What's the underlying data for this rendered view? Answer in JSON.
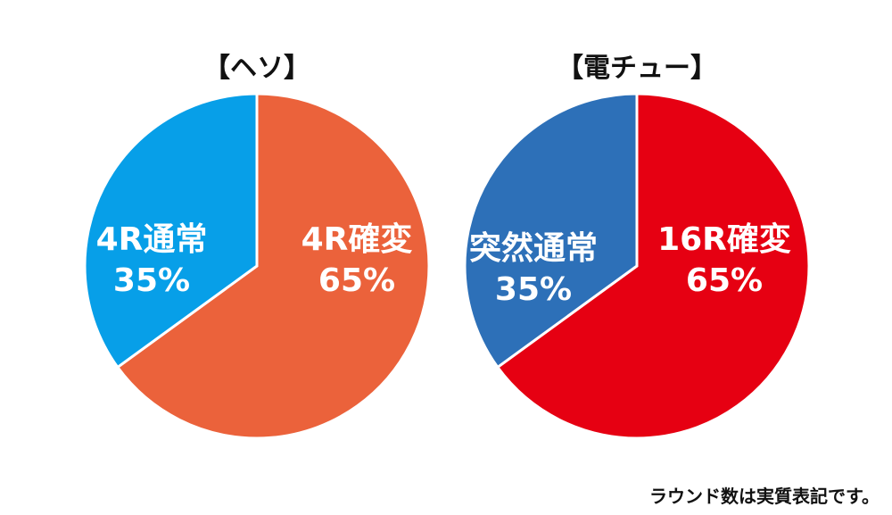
{
  "chart_data": [
    {
      "type": "pie",
      "title": "【ヘソ】",
      "slices": [
        {
          "label": "4R確変",
          "value": 65,
          "value_text": "65%",
          "color": "#eb623b"
        },
        {
          "label": "4R通常",
          "value": 35,
          "value_text": "35%",
          "color": "#079fe8"
        }
      ]
    },
    {
      "type": "pie",
      "title": "【電チュー】",
      "slices": [
        {
          "label": "16R確変",
          "value": 65,
          "value_text": "65%",
          "color": "#e60012"
        },
        {
          "label": "突然通常",
          "value": 35,
          "value_text": "35%",
          "color": "#2d70b8"
        }
      ]
    }
  ],
  "footnote": "ラウンド数は実質表記です。"
}
